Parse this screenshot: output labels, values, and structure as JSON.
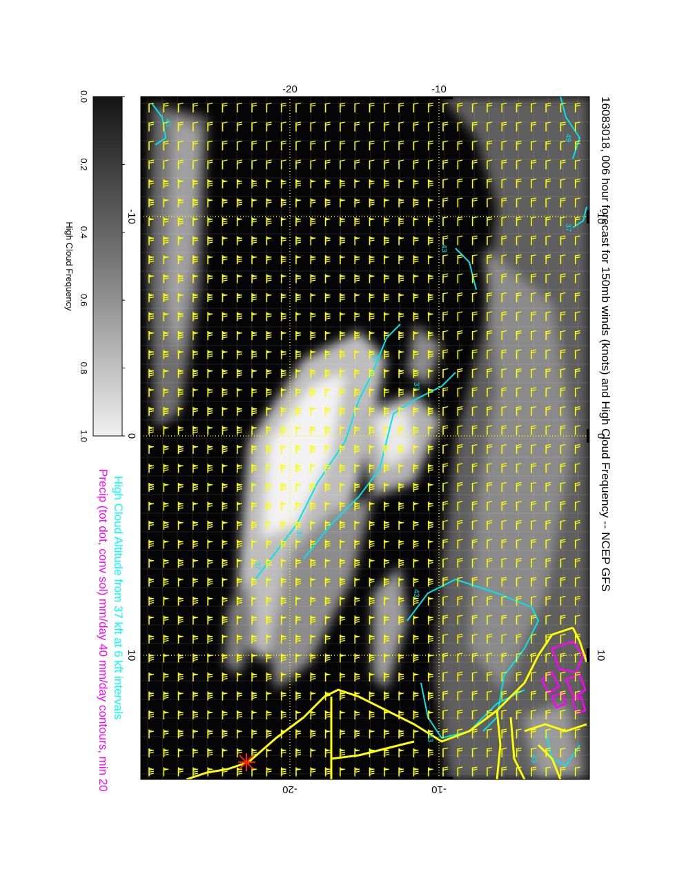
{
  "title": "16083018, 006 hour forecast for 150mb winds (knots) and High Cloud Frequency -- NCEP GFS",
  "footer": {
    "line1": "High Cloud Altitude from 37 kft at 6 kft intervals",
    "line2": "Precip (tot dot, conv sol) mm/day 40 mm/day contours, min 20"
  },
  "colorbar": {
    "label": "High Cloud Frequency",
    "ticks": [
      "0.0",
      "0.2",
      "0.4",
      "0.6",
      "0.8",
      "1.0"
    ]
  },
  "map_axes": {
    "top_ticks": [
      "-20",
      "-10"
    ],
    "bottom_ticks": [
      "-20",
      "-10"
    ],
    "left_ticks": [
      "-10",
      "0",
      "10"
    ],
    "right_ticks": [
      "-10",
      "0",
      "10"
    ]
  },
  "contour_labels": [
    "43",
    "49",
    "37",
    "37",
    "43",
    "37",
    "43",
    "37",
    "43",
    "43",
    "37"
  ],
  "colors": {
    "background": "#000000",
    "wind_barbs": "#ffff00",
    "coastline": "#ffff00",
    "gridlines": "#ffff00",
    "altitude_contours": "#00e5ee",
    "precip_contours": "#ff00ff",
    "footer_line1": "#00ffff",
    "footer_line2": "#ff00ff",
    "marker": "#ff2200"
  }
}
